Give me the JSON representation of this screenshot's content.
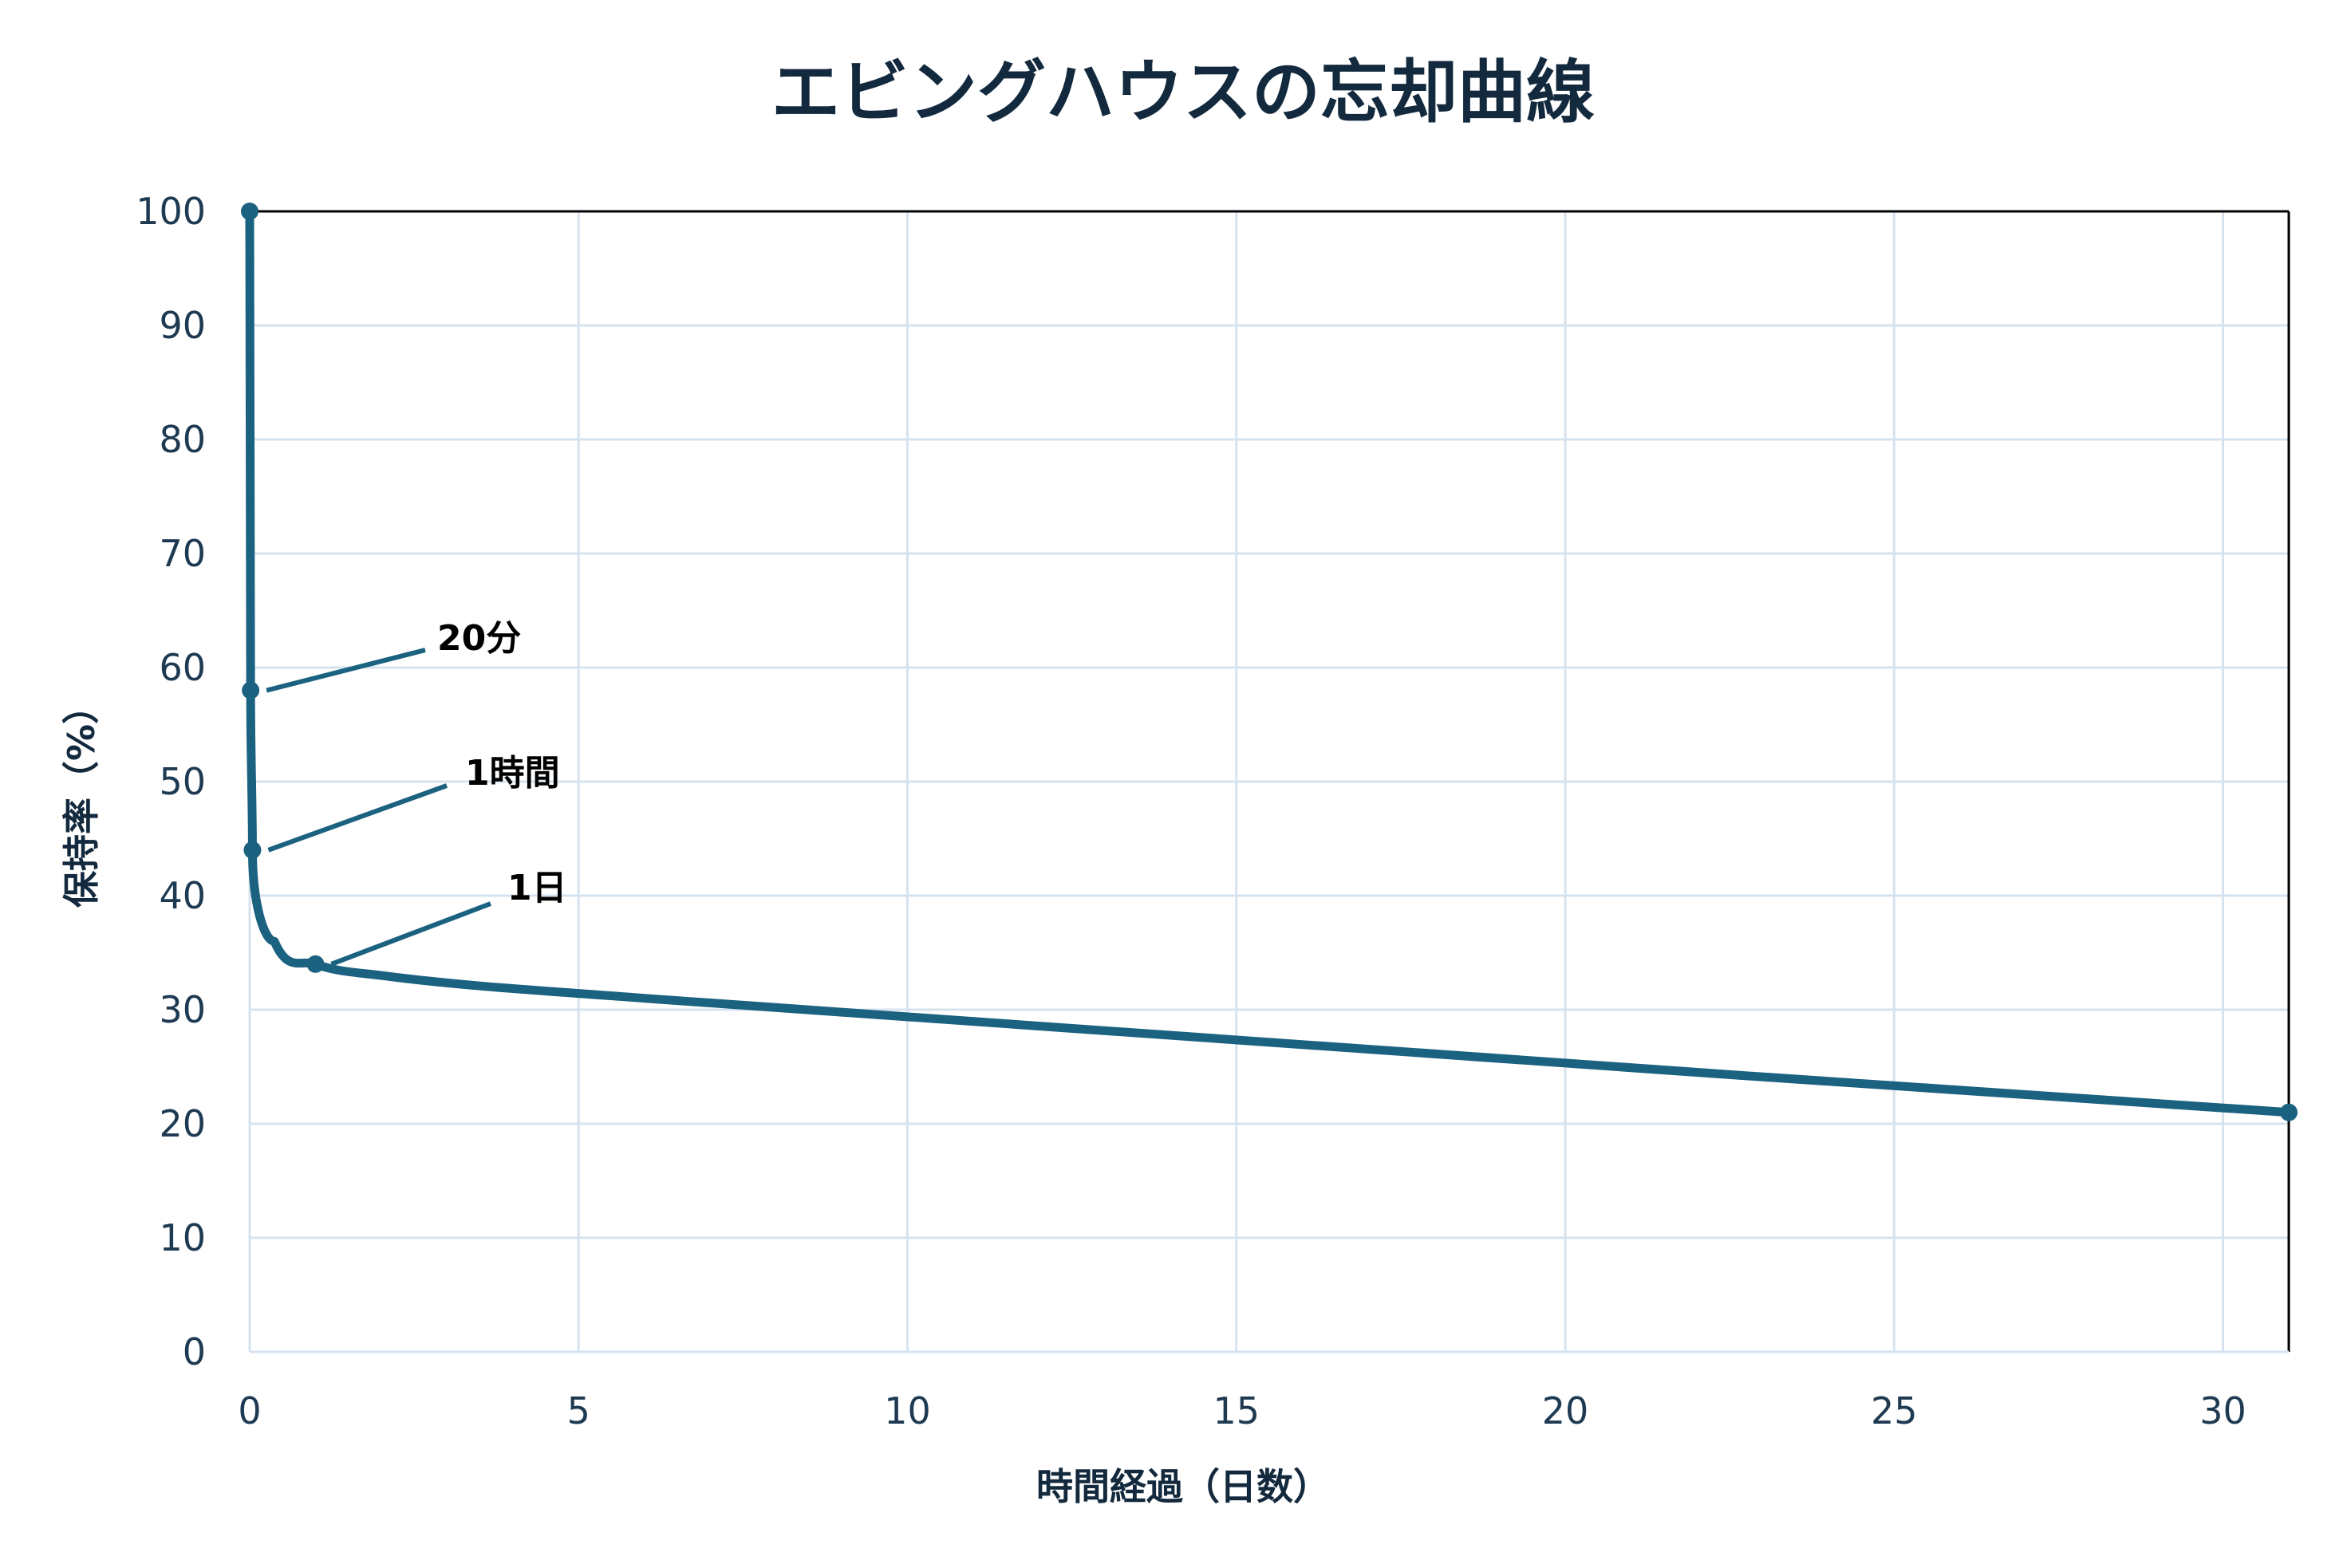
{
  "chart_data": {
    "type": "line",
    "title": "エビングハウスの忘却曲線",
    "xlabel": "時間経過（日数）",
    "ylabel": "保持率（%）",
    "xlim": [
      0,
      31
    ],
    "ylim": [
      0,
      100
    ],
    "x_ticks": [
      0,
      5,
      10,
      15,
      20,
      25,
      30
    ],
    "y_ticks": [
      0,
      10,
      20,
      30,
      40,
      50,
      60,
      70,
      80,
      90,
      100
    ],
    "grid": true,
    "series": [
      {
        "x": [
          0,
          0.0139,
          0.0417,
          0.375,
          1,
          2,
          6,
          31
        ],
        "values": [
          100,
          58,
          44,
          36,
          34,
          33,
          31,
          21
        ]
      }
    ],
    "markers": [
      {
        "x": 0,
        "y": 100
      },
      {
        "x": 0.0139,
        "y": 58
      },
      {
        "x": 0.0417,
        "y": 44
      },
      {
        "x": 1,
        "y": 34
      },
      {
        "x": 31,
        "y": 21
      }
    ],
    "annotations": [
      {
        "text": "20分",
        "x": 0.0139,
        "y": 58
      },
      {
        "text": "1時間",
        "x": 0.0417,
        "y": 44
      },
      {
        "text": "1日",
        "x": 1,
        "y": 34
      }
    ],
    "colors": {
      "line": "#1b6180",
      "grid": "#d6e3ef",
      "axis": "#13293d",
      "frame": "#000000"
    }
  }
}
